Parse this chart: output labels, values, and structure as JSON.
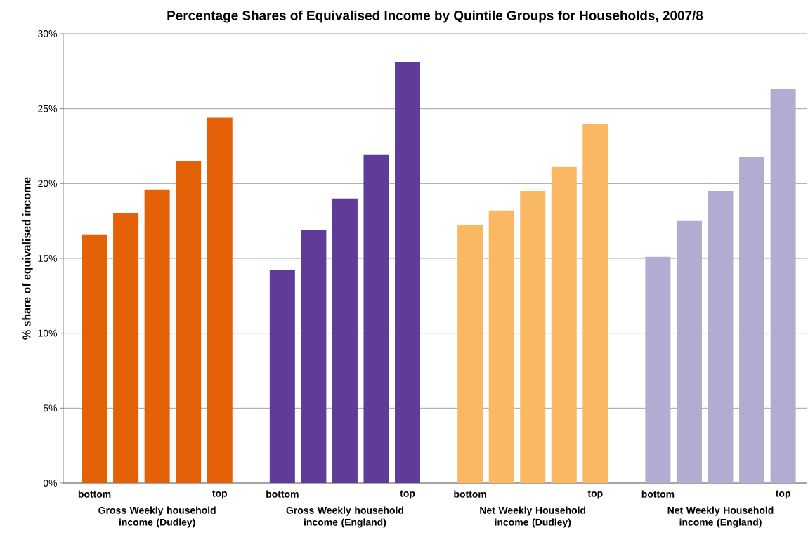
{
  "chart_data": {
    "type": "bar",
    "title": "Percentage Shares of Equivalised Income by Quintile Groups for Households, 2007/8",
    "ylabel": "% share of equivalised income",
    "categories": [
      "bottom",
      null,
      null,
      null,
      "top",
      null,
      "bottom",
      null,
      null,
      null,
      "top",
      null,
      "bottom",
      null,
      null,
      null,
      "top",
      null,
      "bottom",
      null,
      null,
      null,
      "top"
    ],
    "values": [
      16.6,
      18.0,
      19.6,
      21.5,
      24.4,
      null,
      14.2,
      16.9,
      19.0,
      21.9,
      28.1,
      null,
      17.2,
      18.2,
      19.5,
      21.1,
      24.0,
      null,
      15.1,
      17.5,
      19.5,
      21.8,
      26.3
    ],
    "colors": [
      "#e46108",
      "#e46108",
      "#e46108",
      "#e46108",
      "#e46108",
      null,
      "#5f3b9a",
      "#5f3b9a",
      "#5f3b9a",
      "#5f3b9a",
      "#5f3b9a",
      null,
      "#fbb862",
      "#fbb862",
      "#fbb862",
      "#fbb862",
      "#fbb862",
      null,
      "#b2abd2",
      "#b2abd2",
      "#b2abd2",
      "#b2abd2",
      "#b2abd2"
    ],
    "annotations": [
      "Gross Weekly household income (Dudley)",
      "Gross Weekly household income (England)",
      "Net Weekly Household income (Dudley)",
      "Net Weekly Household income (England)"
    ],
    "ylim": [
      0,
      30
    ],
    "yticks": [
      {
        "value": 0,
        "label": "0%"
      },
      {
        "value": 5,
        "label": "5%"
      },
      {
        "value": 10,
        "label": "10%"
      },
      {
        "value": 15,
        "label": "15%"
      },
      {
        "value": 20,
        "label": "20%"
      },
      {
        "value": 25,
        "label": "25%"
      },
      {
        "value": 30,
        "label": "30%"
      }
    ],
    "grid": "y"
  }
}
